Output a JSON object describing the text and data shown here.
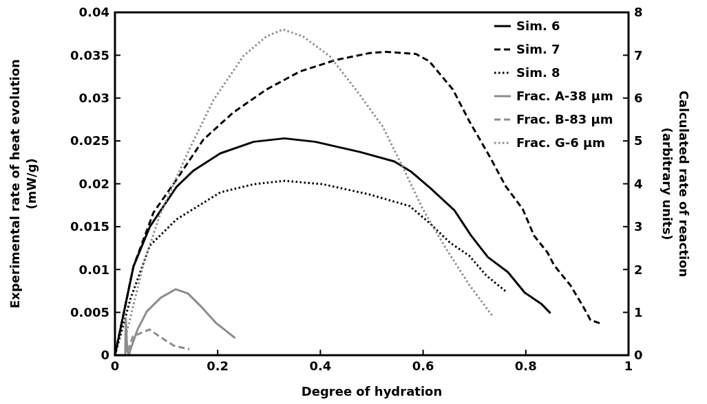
{
  "chart_data": {
    "type": "line",
    "xlabel": "Degree of hydration",
    "ylabel": "Experimental rate of heat evolution (mW/g)",
    "y2label": "Calculated rate of reaction (arbitrary units)",
    "xlim": [
      0,
      1
    ],
    "xticks": [
      0,
      0.2,
      0.4,
      0.6,
      0.8,
      1
    ],
    "ylim": [
      0,
      0.04
    ],
    "yticks": [
      0,
      0.005,
      0.01,
      0.015,
      0.02,
      0.025,
      0.03,
      0.035,
      0.04
    ],
    "y2lim": [
      0,
      8
    ],
    "y2ticks": [
      0,
      1,
      2,
      3,
      4,
      5,
      6,
      7,
      8
    ],
    "grid": false,
    "legend": "top right",
    "series": [
      {
        "name": "Sim. 6",
        "color": "#000000",
        "line_style": "solid",
        "axis": "y2",
        "x": [
          0,
          0.036,
          0.068,
          0.12,
          0.153,
          0.205,
          0.27,
          0.33,
          0.39,
          0.478,
          0.544,
          0.577,
          0.615,
          0.661,
          0.693,
          0.726,
          0.765,
          0.798,
          0.83,
          0.848
        ],
        "values": [
          0,
          2.07,
          3.0,
          3.93,
          4.31,
          4.71,
          4.98,
          5.06,
          4.98,
          4.74,
          4.52,
          4.28,
          3.89,
          3.38,
          2.8,
          2.29,
          1.94,
          1.46,
          1.2,
          0.98
        ]
      },
      {
        "name": "Sim. 7",
        "color": "#000000",
        "line_style": "dashed",
        "axis": "y2",
        "x": [
          0,
          0.036,
          0.075,
          0.12,
          0.172,
          0.23,
          0.295,
          0.36,
          0.43,
          0.496,
          0.528,
          0.586,
          0.612,
          0.658,
          0.69,
          0.729,
          0.761,
          0.794,
          0.816,
          0.842,
          0.855,
          0.887,
          0.91,
          0.926,
          0.946
        ],
        "values": [
          0,
          2.07,
          3.33,
          4.1,
          5.03,
          5.66,
          6.2,
          6.62,
          6.89,
          7.05,
          7.08,
          7.03,
          6.86,
          6.2,
          5.46,
          4.65,
          3.94,
          3.41,
          2.79,
          2.4,
          2.1,
          1.63,
          1.17,
          0.82,
          0.74
        ]
      },
      {
        "name": "Sim. 8",
        "color": "#000000",
        "line_style": "dotted",
        "axis": "y2",
        "x": [
          0,
          0.03,
          0.068,
          0.12,
          0.205,
          0.27,
          0.33,
          0.405,
          0.496,
          0.574,
          0.612,
          0.652,
          0.69,
          0.723,
          0.761
        ],
        "values": [
          0,
          1.31,
          2.56,
          3.17,
          3.8,
          3.99,
          4.07,
          3.99,
          3.75,
          3.48,
          3.09,
          2.63,
          2.32,
          1.86,
          1.49
        ]
      },
      {
        "name": "Frac. A-38 µm",
        "color": "#8c8c8c",
        "line_style": "solid",
        "axis": "y",
        "x": [
          0,
          0.02,
          0.021,
          0.024,
          0.027,
          0.031,
          0.044,
          0.062,
          0.089,
          0.118,
          0.142,
          0.169,
          0.196,
          0.234
        ],
        "values": [
          0,
          0,
          0.0043,
          0.0005,
          0,
          0.0008,
          0.003,
          0.0051,
          0.0067,
          0.0077,
          0.0072,
          0.0056,
          0.0038,
          0.002
        ]
      },
      {
        "name": "Frac. B-83 µm",
        "color": "#8c8c8c",
        "line_style": "dashed",
        "axis": "y",
        "x": [
          0.025,
          0.035,
          0.067,
          0.094,
          0.115,
          0.145
        ],
        "values": [
          0.0005,
          0.0022,
          0.003,
          0.0019,
          0.0011,
          0.0007
        ]
      },
      {
        "name": "Frac. G-6 µm",
        "color": "#8c8c8c",
        "line_style": "dotted",
        "axis": "y",
        "x": [
          0.023,
          0.055,
          0.087,
          0.139,
          0.192,
          0.25,
          0.295,
          0.327,
          0.366,
          0.418,
          0.469,
          0.521,
          0.56,
          0.599,
          0.645,
          0.69,
          0.736
        ],
        "values": [
          0.0027,
          0.0105,
          0.0163,
          0.0233,
          0.0298,
          0.0349,
          0.0372,
          0.038,
          0.0372,
          0.0349,
          0.031,
          0.0267,
          0.022,
          0.0171,
          0.0124,
          0.0082,
          0.0045
        ]
      }
    ]
  }
}
